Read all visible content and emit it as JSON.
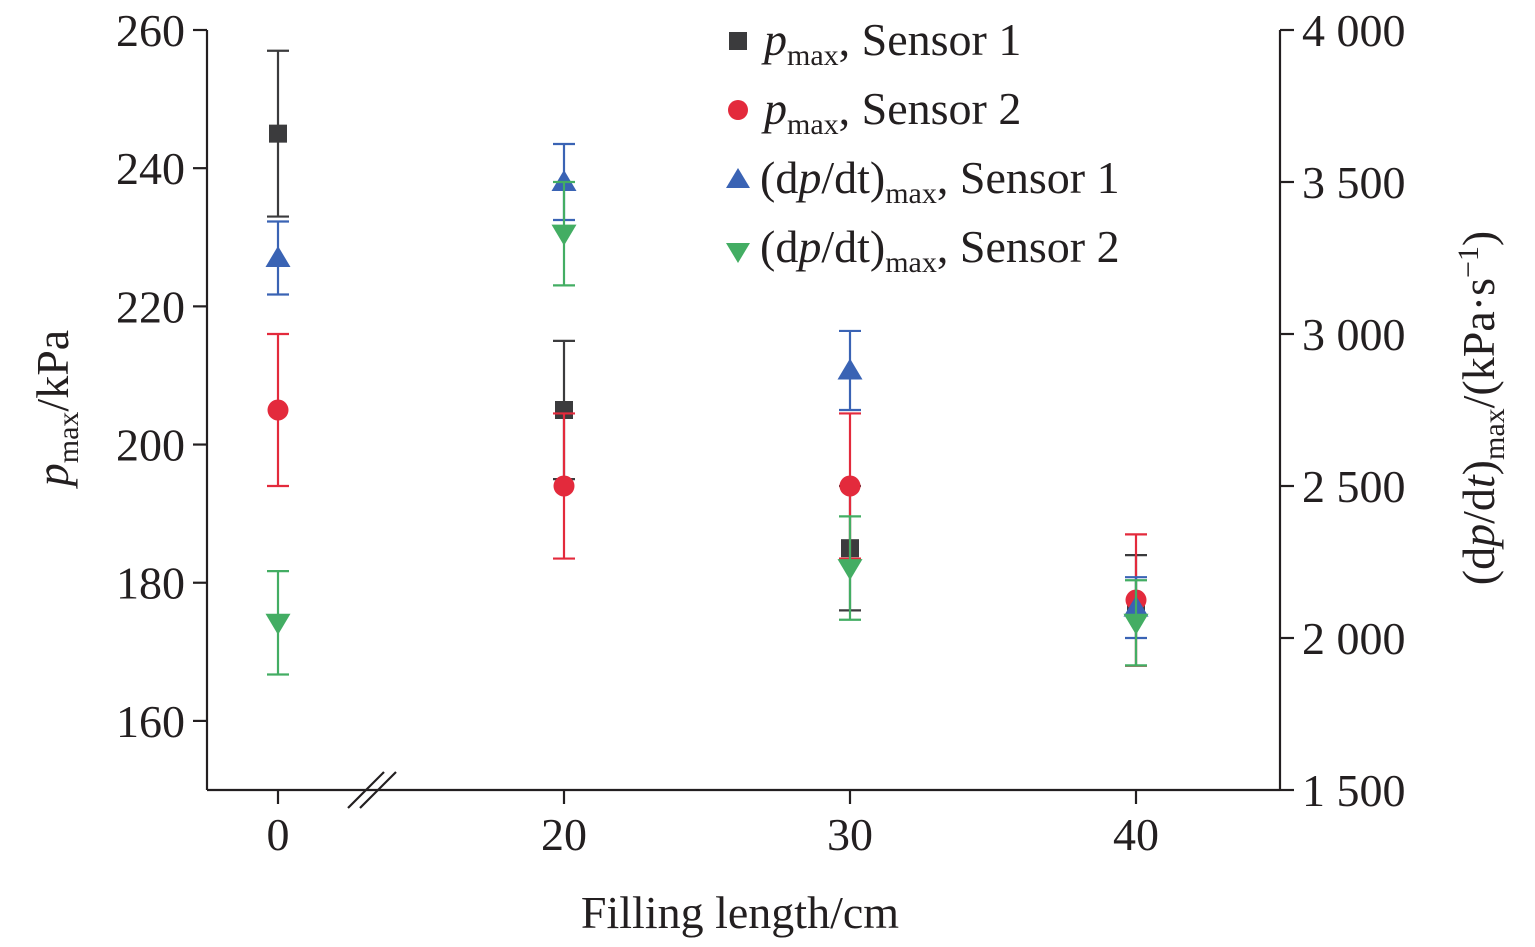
{
  "chart_data": {
    "type": "scatter",
    "title": "",
    "xlabel": "Filling length/cm",
    "ylabel_left": {
      "var": "p",
      "sub": "max",
      "unit": "/kPa"
    },
    "ylabel_right": {
      "pre": "(d",
      "var": "p",
      "mid": "/d",
      "var2": "t",
      "post": ")",
      "sub": "max",
      "unit": "/(kPa·s",
      "exp": "−1",
      "close": ")"
    },
    "categories": [
      "0",
      "20",
      "30",
      "40"
    ],
    "x_break_after": "0",
    "ylim_left": [
      150,
      260
    ],
    "yticks_left": [
      "160",
      "180",
      "200",
      "220",
      "240",
      "260"
    ],
    "ylim_right": [
      1500,
      4000
    ],
    "yticks_right": [
      "1 500",
      "2 000",
      "2 500",
      "3 000",
      "3 500",
      "4 000"
    ],
    "legend_position": "top-right",
    "series": [
      {
        "name_var": "p",
        "name_sub": "max",
        "name_suffix": ", Sensor 1",
        "axis": "left",
        "marker": "square",
        "color": "#3b3b3d",
        "values": [
          245,
          205,
          185,
          176
        ],
        "errors": [
          12,
          10,
          9,
          8
        ]
      },
      {
        "name_var": "p",
        "name_sub": "max",
        "name_suffix": ", Sensor 2",
        "axis": "left",
        "marker": "circle",
        "color": "#e32a3c",
        "values": [
          205,
          194,
          194,
          177.5
        ],
        "errors": [
          11,
          10.5,
          10.5,
          9.5
        ]
      },
      {
        "name_prefix": "(d",
        "name_var": "p",
        "name_mid": "/dt)",
        "name_sub": "max",
        "name_suffix": ", Sensor 1",
        "axis": "right",
        "marker": "triangle-up",
        "color": "#3a63b4",
        "values": [
          3250,
          3500,
          2880,
          2100
        ],
        "errors": [
          120,
          125,
          130,
          100
        ]
      },
      {
        "name_prefix": "(d",
        "name_var": "p",
        "name_mid": "/dt)",
        "name_sub": "max",
        "name_suffix": ", Sensor 2",
        "axis": "right",
        "marker": "triangle-down",
        "color": "#43ad63",
        "values": [
          2050,
          3330,
          2230,
          2050
        ],
        "errors": [
          170,
          170,
          170,
          140
        ]
      }
    ]
  }
}
